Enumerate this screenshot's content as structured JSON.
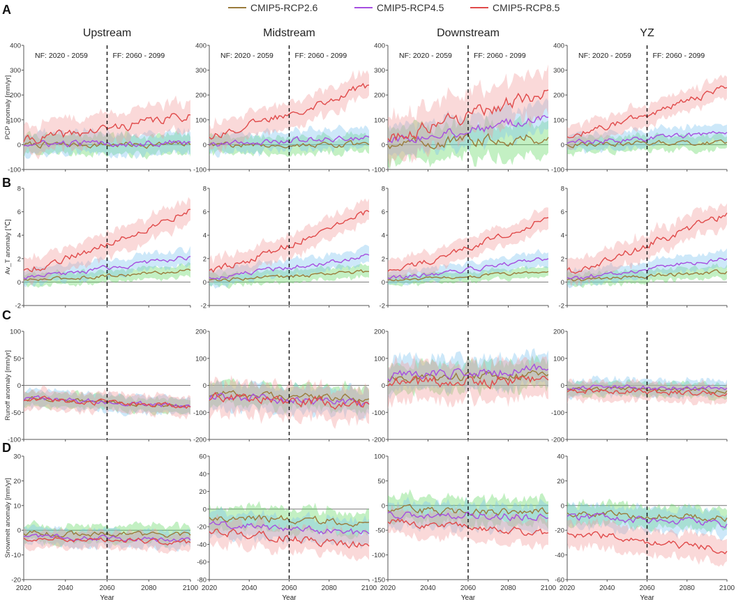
{
  "legend": [
    {
      "name": "CMIP5-RCP2.6",
      "color": "#9a7b3b",
      "band": "#62d862"
    },
    {
      "name": "CMIP5-RCP4.5",
      "color": "#a64ee0",
      "band": "#7cc3f0"
    },
    {
      "name": "CMIP5-RCP8.5",
      "color": "#e04a4a",
      "band": "#f29a9a"
    }
  ],
  "columns": [
    "Upstream",
    "Midstream",
    "Downstream",
    "YZ"
  ],
  "periods": {
    "near": "NF: 2020 - 2059",
    "far": "FF: 2060 - 2099"
  },
  "xaxis": {
    "label": "Year",
    "ticks": [
      2020,
      2040,
      2060,
      2080,
      2100
    ],
    "split": 2060
  },
  "chart_data": [
    {
      "type": "line",
      "panel": "A",
      "variable": "PCP",
      "ylabel": "PCP anomaly [mm/yr]",
      "ylims": [
        [
          -100,
          400
        ],
        [
          -100,
          400
        ],
        [
          -100,
          400
        ],
        [
          -100,
          400
        ]
      ],
      "yticks": [
        [
          -100,
          0,
          100,
          200,
          300,
          400
        ],
        [
          -100,
          0,
          100,
          200,
          300,
          400
        ],
        [
          -100,
          0,
          100,
          200,
          300,
          400
        ],
        [
          -100,
          0,
          100,
          200,
          300,
          400
        ]
      ],
      "end_values": [
        [
          0,
          10,
          120
        ],
        [
          0,
          30,
          240
        ],
        [
          30,
          110,
          220
        ],
        [
          10,
          50,
          230
        ]
      ],
      "band_halfwidth": [
        [
          45,
          50,
          70
        ],
        [
          40,
          45,
          60
        ],
        [
          80,
          70,
          100
        ],
        [
          35,
          40,
          50
        ]
      ]
    },
    {
      "type": "line",
      "panel": "B",
      "variable": "Av_T",
      "ylabel": "Av_T anomaly [℃]",
      "ylims": [
        [
          -2,
          8
        ],
        [
          -2,
          8
        ],
        [
          -2,
          8
        ],
        [
          -2,
          8
        ]
      ],
      "yticks": [
        [
          -2,
          0,
          2,
          4,
          6,
          8
        ],
        [
          -2,
          0,
          2,
          4,
          6,
          8
        ],
        [
          -2,
          0,
          2,
          4,
          6,
          8
        ],
        [
          -2,
          0,
          2,
          4,
          6,
          8
        ]
      ],
      "end_values": [
        [
          1.0,
          2.2,
          6.2
        ],
        [
          0.9,
          2.3,
          6.0
        ],
        [
          0.9,
          2.0,
          5.5
        ],
        [
          0.9,
          2.0,
          5.9
        ]
      ],
      "band_halfwidth": [
        [
          0.6,
          0.8,
          1.2
        ],
        [
          0.6,
          0.8,
          1.1
        ],
        [
          0.5,
          0.7,
          1.0
        ],
        [
          0.6,
          0.8,
          1.2
        ]
      ]
    },
    {
      "type": "line",
      "panel": "C",
      "variable": "Runoff",
      "ylabel": "Runoff anomaly [mm/yr]",
      "ylims": [
        [
          -100,
          100
        ],
        [
          -200,
          200
        ],
        [
          -200,
          200
        ],
        [
          -200,
          200
        ]
      ],
      "yticks": [
        [
          -100,
          -50,
          0,
          50,
          100
        ],
        [
          -200,
          -100,
          0,
          100,
          200
        ],
        [
          -200,
          -100,
          0,
          100,
          200
        ],
        [
          -200,
          -100,
          0,
          100,
          200
        ]
      ],
      "end_values": [
        [
          -40,
          -40,
          -40
        ],
        [
          -50,
          -70,
          -70
        ],
        [
          40,
          60,
          20
        ],
        [
          -20,
          -10,
          -30
        ]
      ],
      "band_halfwidth": [
        [
          15,
          18,
          20
        ],
        [
          50,
          55,
          70
        ],
        [
          60,
          65,
          80
        ],
        [
          30,
          35,
          40
        ]
      ]
    },
    {
      "type": "line",
      "panel": "D",
      "variable": "Snowmelt",
      "ylabel": "Snowmelt anomaly [mm/yr]",
      "ylims": [
        [
          -20,
          30
        ],
        [
          -80,
          60
        ],
        [
          -150,
          100
        ],
        [
          -60,
          40
        ]
      ],
      "yticks": [
        [
          -20,
          -10,
          0,
          10,
          20,
          30
        ],
        [
          -80,
          -60,
          -40,
          -20,
          0,
          20,
          40,
          60
        ],
        [
          -150,
          -100,
          -50,
          0,
          50,
          100
        ],
        [
          -60,
          -40,
          -20,
          0,
          20,
          40
        ]
      ],
      "end_values": [
        [
          -2,
          -4,
          -5
        ],
        [
          -15,
          -28,
          -42
        ],
        [
          -15,
          -25,
          -55
        ],
        [
          -10,
          -15,
          -37
        ]
      ],
      "band_halfwidth": [
        [
          4,
          4,
          4
        ],
        [
          15,
          16,
          16
        ],
        [
          30,
          30,
          30
        ],
        [
          10,
          11,
          12
        ]
      ]
    }
  ]
}
